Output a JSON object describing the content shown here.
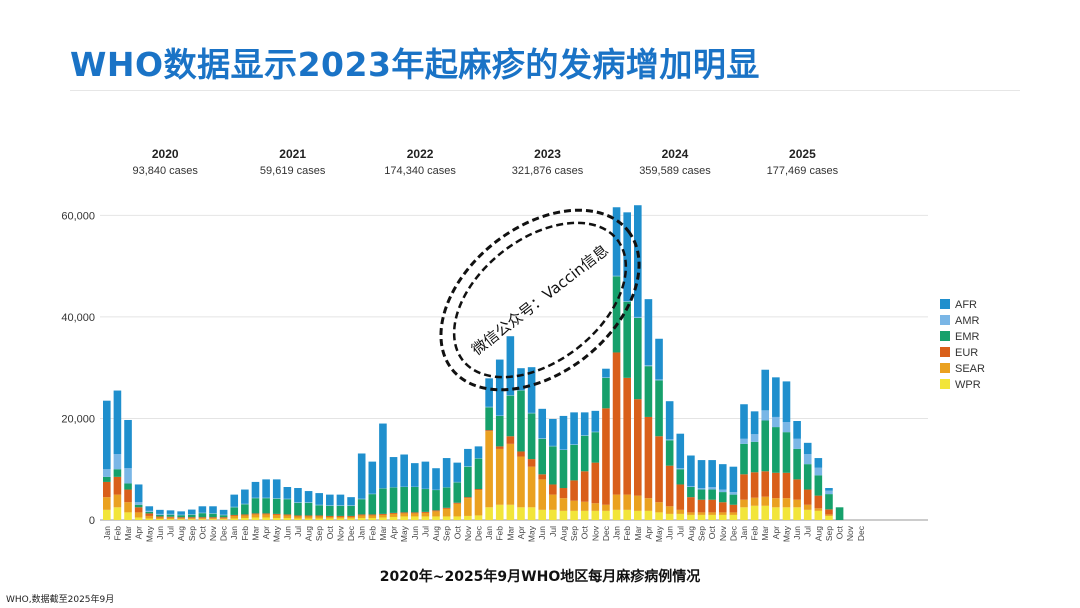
{
  "title": "WHO数据显示2023年起麻疹的发病增加明显",
  "caption": "2020年~2025年9月WHO地区每月麻疹病例情况",
  "footnote": "WHO,数据截至2025年9月",
  "watermark": "微信公众号：Vaccin信息",
  "colors": {
    "AFR": "#1f8fcd",
    "AMR": "#7ab6e6",
    "EMR": "#16a06b",
    "EUR": "#d95f1a",
    "SEAR": "#eaa120",
    "WPR": "#f2e53a"
  },
  "chart_data": {
    "type": "bar",
    "stacked": true,
    "title": "",
    "xlabel": "",
    "ylabel": "",
    "ylim": [
      0,
      65000
    ],
    "yticks": [
      0,
      20000,
      40000,
      60000
    ],
    "ytick_labels": [
      "0",
      "20,000",
      "40,000",
      "60,000"
    ],
    "legend": [
      "AFR",
      "AMR",
      "EMR",
      "EUR",
      "SEAR",
      "WPR"
    ],
    "months": [
      "Jan",
      "Feb",
      "Mar",
      "Apr",
      "May",
      "Jun",
      "Jul",
      "Aug",
      "Sep",
      "Oct",
      "Nov",
      "Dec"
    ],
    "years": [
      {
        "year": "2020",
        "cases": "93,840 cases"
      },
      {
        "year": "2021",
        "cases": "59,619 cases"
      },
      {
        "year": "2022",
        "cases": "174,340 cases"
      },
      {
        "year": "2023",
        "cases": "321,876 cases"
      },
      {
        "year": "2024",
        "cases": "359,589 cases"
      },
      {
        "year": "2025",
        "cases": "177,469 cases"
      }
    ],
    "series": [
      {
        "name": "WPR",
        "values": [
          2000,
          2500,
          1500,
          500,
          300,
          200,
          150,
          150,
          150,
          150,
          150,
          150,
          300,
          400,
          500,
          500,
          400,
          400,
          300,
          300,
          300,
          300,
          300,
          300,
          400,
          400,
          500,
          600,
          700,
          700,
          700,
          700,
          700,
          700,
          800,
          900,
          2500,
          3000,
          3000,
          2500,
          2500,
          2000,
          2000,
          1800,
          1800,
          1800,
          1800,
          1800,
          2000,
          2000,
          1800,
          1800,
          1500,
          1200,
          1200,
          1000,
          1000,
          1000,
          1000,
          1000,
          2500,
          2800,
          2800,
          2500,
          2500,
          2500,
          2000,
          1800,
          800,
          0,
          0,
          0
        ]
      },
      {
        "name": "SEAR",
        "values": [
          2500,
          2500,
          2000,
          1000,
          500,
          300,
          300,
          200,
          200,
          200,
          200,
          200,
          500,
          500,
          600,
          600,
          600,
          500,
          400,
          400,
          400,
          300,
          300,
          300,
          500,
          500,
          500,
          600,
          600,
          600,
          700,
          1000,
          1500,
          2500,
          3500,
          5000,
          15000,
          11000,
          12000,
          10000,
          8000,
          6000,
          3000,
          2500,
          2000,
          1800,
          1500,
          1200,
          3000,
          3000,
          3000,
          2500,
          2000,
          1500,
          800,
          500,
          500,
          500,
          500,
          500,
          1500,
          1600,
          1800,
          1800,
          1800,
          1500,
          1000,
          500,
          300,
          0,
          0,
          0
        ]
      },
      {
        "name": "EUR",
        "values": [
          3000,
          3500,
          2500,
          1000,
          500,
          200,
          200,
          200,
          200,
          200,
          200,
          200,
          200,
          200,
          200,
          200,
          200,
          200,
          200,
          200,
          200,
          200,
          200,
          200,
          200,
          200,
          200,
          200,
          200,
          200,
          200,
          200,
          200,
          200,
          200,
          200,
          200,
          500,
          1500,
          1000,
          1500,
          1000,
          2000,
          2000,
          4000,
          6000,
          8000,
          19000,
          28000,
          23000,
          19000,
          16000,
          13000,
          8000,
          5000,
          3000,
          2500,
          2500,
          2000,
          1500,
          5000,
          5000,
          5000,
          5000,
          5000,
          4000,
          3000,
          2500,
          1000,
          0,
          0,
          0
        ]
      },
      {
        "name": "EMR",
        "values": [
          1000,
          1500,
          1200,
          500,
          300,
          300,
          400,
          400,
          500,
          800,
          700,
          400,
          1500,
          2000,
          3000,
          3000,
          3000,
          3000,
          2500,
          2500,
          2000,
          2000,
          2000,
          2000,
          3000,
          4000,
          5000,
          5000,
          5000,
          5000,
          4500,
          4000,
          4000,
          4000,
          6000,
          6000,
          4500,
          6000,
          8000,
          12000,
          9000,
          7000,
          7500,
          7500,
          7000,
          7000,
          6000,
          6000,
          15000,
          15000,
          16000,
          10000,
          11000,
          5000,
          3000,
          2000,
          2000,
          2000,
          2000,
          2000,
          6000,
          6000,
          10000,
          9000,
          8000,
          6000,
          5000,
          4000,
          3000,
          2500,
          0,
          0
        ]
      },
      {
        "name": "AMR",
        "values": [
          1500,
          3000,
          3000,
          500,
          200,
          200,
          150,
          100,
          100,
          100,
          100,
          100,
          100,
          100,
          100,
          100,
          100,
          100,
          100,
          100,
          100,
          100,
          100,
          100,
          100,
          100,
          100,
          100,
          100,
          100,
          100,
          100,
          100,
          100,
          100,
          100,
          100,
          100,
          100,
          100,
          100,
          100,
          100,
          100,
          100,
          100,
          100,
          100,
          100,
          100,
          200,
          200,
          200,
          200,
          200,
          200,
          300,
          500,
          500,
          500,
          1000,
          1500,
          2000,
          2000,
          2000,
          2000,
          2000,
          1500,
          700,
          0,
          0,
          0
        ]
      },
      {
        "name": "AFR",
        "values": [
          13500,
          12500,
          9500,
          3500,
          900,
          800,
          700,
          650,
          900,
          1250,
          1350,
          950,
          2400,
          2800,
          3100,
          3600,
          3700,
          2300,
          2800,
          2200,
          2300,
          2100,
          2100,
          1600,
          8900,
          6300,
          12700,
          5900,
          6300,
          4600,
          5300,
          4200,
          5700,
          3800,
          3400,
          2300,
          5600,
          11000,
          11600,
          4300,
          9000,
          5800,
          5300,
          6600,
          6300,
          4500,
          4100,
          1700,
          13500,
          17500,
          22000,
          13000,
          8000,
          7500,
          6800,
          6000,
          5500,
          5300,
          5000,
          5000,
          6800,
          4500,
          8000,
          7800,
          8000,
          3500,
          2200,
          1900,
          500,
          0,
          0,
          0
        ]
      }
    ]
  }
}
